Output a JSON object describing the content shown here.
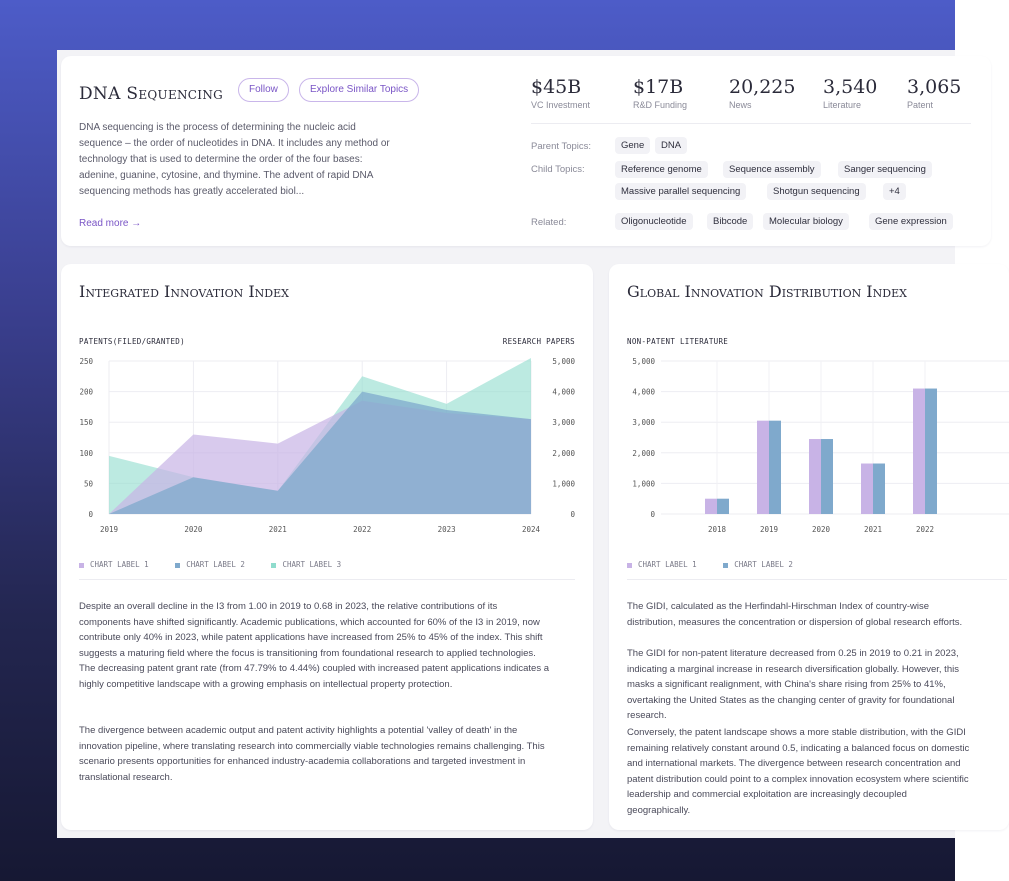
{
  "topic": {
    "title": "DNA Sequencing",
    "follow_label": "Follow",
    "explore_label": "Explore Similar Topics",
    "description": "DNA sequencing is the process of determining the nucleic acid sequence – the order of nucleotides in DNA. It includes any method or technology that is used to determine the order of the four bases: adenine, guanine, cytosine, and thymine. The advent of rapid DNA sequencing methods has greatly accelerated biol...",
    "read_more_label": "Read more →"
  },
  "metrics": [
    {
      "value": "$45B",
      "label": "VC Investment"
    },
    {
      "value": "$17B",
      "label": "R&D Funding"
    },
    {
      "value": "20,225",
      "label": "News"
    },
    {
      "value": "3,540",
      "label": "Literature"
    },
    {
      "value": "3,065",
      "label": "Patent"
    }
  ],
  "taxonomy": {
    "parent_label": "Parent Topics:",
    "parent_tags": [
      "Gene",
      "DNA"
    ],
    "child_label": "Child Topics:",
    "child_tags_row1": [
      "Reference genome",
      "Sequence assembly",
      "Sanger sequencing"
    ],
    "child_tags_row2": [
      "Massive parallel sequencing",
      "Shotgun sequencing",
      "+4"
    ],
    "related_label": "Related:",
    "related_tags": [
      "Oligonucleotide",
      "Bibcode",
      "Molecular biology",
      "Gene expression"
    ]
  },
  "left_panel": {
    "title": "Integrated Innovation Index",
    "y_left_title": "PATENTS(FILED/GRANTED)",
    "y_right_title": "RESEARCH PAPERS",
    "legend": [
      "CHART LABEL 1",
      "CHART LABEL 2",
      "CHART LABEL 3"
    ],
    "paragraph1": "Despite an overall decline in the I3 from 1.00 in 2019 to 0.68 in 2023, the relative contributions of its components have shifted significantly. Academic publications, which accounted for 60% of the I3 in 2019, now contribute only 40% in 2023, while patent applications have increased from 25% to 45% of the index. This shift suggests a maturing field where the focus is transitioning from foundational research to applied technologies. The decreasing patent grant rate (from 47.79% to 4.44%) coupled with increased patent applications indicates a highly competitive landscape with a growing emphasis on intellectual property protection.",
    "paragraph2": "The divergence between academic output and patent activity highlights a potential 'valley of death' in the innovation pipeline, where translating research into commercially viable technologies remains challenging. This scenario presents opportunities for enhanced industry-academia collaborations and targeted investment in translational research."
  },
  "right_panel": {
    "title": "Global Innovation Distribution Index",
    "y_title": "NON-PATENT LITERATURE",
    "legend": [
      "CHART LABEL 1",
      "CHART LABEL 2"
    ],
    "paragraph1": "The GIDI, calculated as the Herfindahl-Hirschman Index of country-wise distribution, measures the concentration or dispersion of global research efforts.",
    "paragraph2": "The GIDI for non-patent literature decreased from 0.25 in 2019 to 0.21 in 2023, indicating a marginal increase in research diversification globally. However, this masks a significant realignment, with China's share rising from 25% to 41%, overtaking the United States as the changing center of gravity for foundational research.",
    "paragraph3": "Conversely, the patent landscape shows a more stable distribution, with the GIDI remaining relatively constant around 0.5, indicating a balanced focus on domestic and international markets. The divergence between research concentration and patent distribution could point to a complex innovation ecosystem where scientific leadership and commercial exploitation are increasingly decoupled geographically."
  },
  "colors": {
    "series1": "#c8b3e6",
    "series2": "#7fa9cc",
    "series3": "#8fdccd",
    "accent": "#7a55c6"
  },
  "chart_data": [
    {
      "type": "area",
      "x": [
        "2019",
        "2020",
        "2021",
        "2022",
        "2023",
        "2024"
      ],
      "series": [
        {
          "name": "CHART LABEL 1",
          "values": [
            0,
            130,
            115,
            185,
            165,
            155
          ],
          "axis": "left"
        },
        {
          "name": "CHART LABEL 2",
          "values": [
            0,
            60,
            38,
            200,
            170,
            155
          ],
          "axis": "left"
        },
        {
          "name": "CHART LABEL 3",
          "values": [
            1900,
            1200,
            750,
            4500,
            3600,
            5100
          ],
          "axis": "right"
        }
      ],
      "y_left_ticks": [
        "0",
        "50",
        "100",
        "150",
        "200",
        "250"
      ],
      "y_right_ticks": [
        "0",
        "1,000",
        "2,000",
        "3,000",
        "4,000",
        "5,000"
      ],
      "ylim_left": [
        0,
        250
      ],
      "ylim_right": [
        0,
        5000
      ],
      "grid": true,
      "legend_position": "bottom-left"
    },
    {
      "type": "bar",
      "categories": [
        "2018",
        "2019",
        "2020",
        "2021",
        "2022"
      ],
      "series": [
        {
          "name": "CHART LABEL 1",
          "values": [
            500,
            3050,
            2450,
            1650,
            4100
          ]
        },
        {
          "name": "CHART LABEL 2",
          "values": [
            500,
            3050,
            2450,
            1650,
            4100
          ]
        }
      ],
      "y_ticks": [
        "0",
        "1,000",
        "2,000",
        "3,000",
        "4,000",
        "5,000"
      ],
      "ylim": [
        0,
        5000
      ],
      "grid": true,
      "legend_position": "bottom-left"
    }
  ]
}
